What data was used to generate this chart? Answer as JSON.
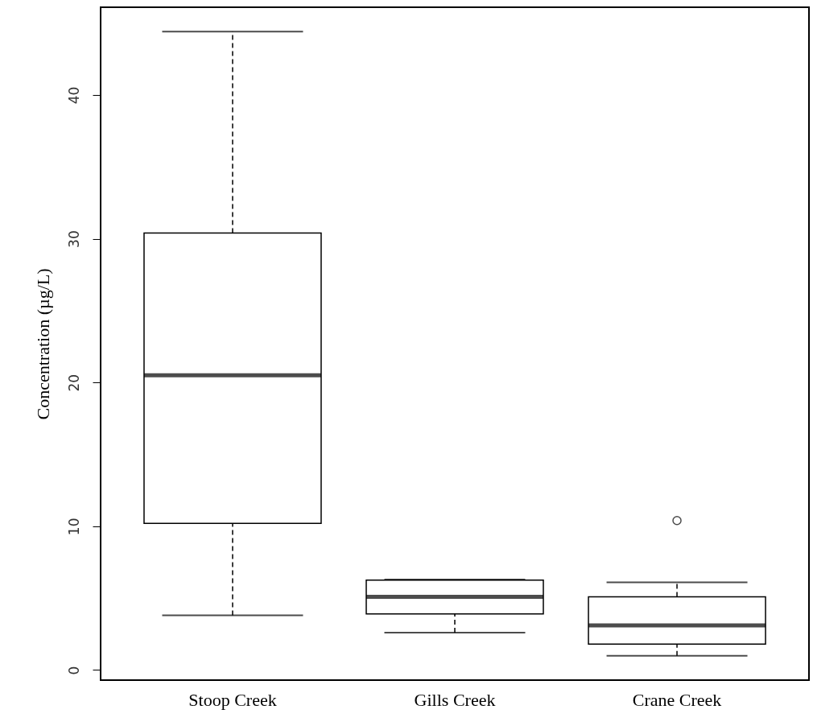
{
  "chart_data": {
    "type": "box",
    "ylabel": "Concentration (µg/L)",
    "categories": [
      "Stoop Creek",
      "Gills Creek",
      "Crane Creek"
    ],
    "boxes": [
      {
        "low": 3.8,
        "q1": 10.2,
        "median": 20.5,
        "q3": 30.4,
        "high": 44.4
      },
      {
        "low": 2.6,
        "q1": 3.9,
        "median": 5.1,
        "q3": 6.25,
        "high": 6.3
      },
      {
        "low": 1.0,
        "q1": 1.8,
        "median": 3.1,
        "q3": 5.1,
        "high": 6.1,
        "outliers": [
          10.4
        ]
      }
    ],
    "ylim": [
      -0.7,
      46.1
    ],
    "yticks": [
      0,
      10,
      20,
      30,
      40
    ]
  }
}
